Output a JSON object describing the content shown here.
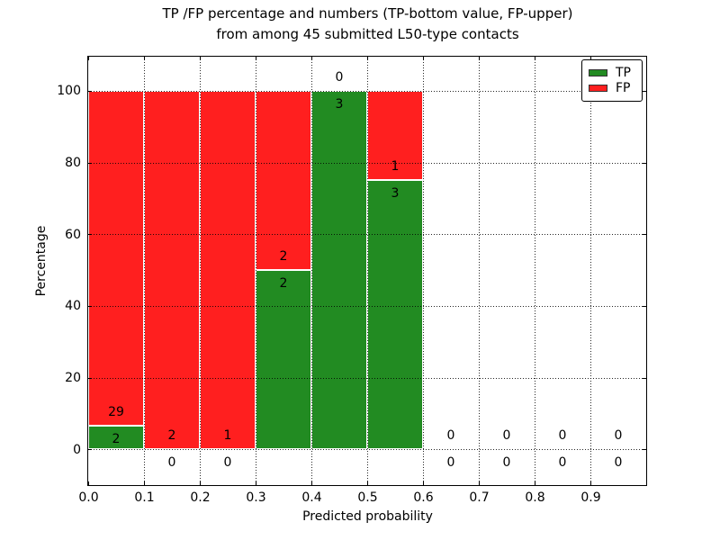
{
  "figure": {
    "title_line1": "TP /FP percentage and numbers (TP-bottom value, FP-upper)",
    "title_line2": "from among 45 submitted L50-type contacts"
  },
  "legend": {
    "position": "upper right",
    "items": [
      {
        "label": "TP",
        "color": "#228b22"
      },
      {
        "label": "FP",
        "color": "#ff1f1f"
      }
    ]
  },
  "chart_data": {
    "type": "bar",
    "stacked": true,
    "title": "TP /FP percentage and numbers (TP-bottom value, FP-upper) from among 45 submitted L50-type contacts",
    "xlabel": "Predicted probability",
    "ylabel": "Percentage",
    "xlim": [
      0.0,
      1.0
    ],
    "ylim": [
      -10,
      109.5
    ],
    "xticks": [
      "0.0",
      "0.1",
      "0.2",
      "0.3",
      "0.4",
      "0.5",
      "0.6",
      "0.7",
      "0.8",
      "0.9"
    ],
    "yticks": [
      0,
      20,
      40,
      60,
      80,
      100
    ],
    "bin_width": 0.1,
    "bin_starts": [
      0.0,
      0.1,
      0.2,
      0.3,
      0.4,
      0.5,
      0.6,
      0.7,
      0.8,
      0.9
    ],
    "series": [
      {
        "name": "TP",
        "color": "#228b22",
        "values": [
          2,
          0,
          0,
          2,
          3,
          3,
          0,
          0,
          0,
          0
        ]
      },
      {
        "name": "FP",
        "color": "#ff1f1f",
        "values": [
          29,
          2,
          1,
          2,
          0,
          1,
          0,
          0,
          0,
          0
        ]
      }
    ],
    "tp_percent": [
      6.45,
      0,
      0,
      50,
      100,
      75,
      0,
      0,
      0,
      0
    ],
    "fp_percent": [
      93.55,
      100,
      100,
      50,
      0,
      25,
      0,
      0,
      0,
      0
    ],
    "total_contacts": 45,
    "grid": "dotted",
    "grid_above_bars": true,
    "bar_edge_color": "#ffffff"
  }
}
